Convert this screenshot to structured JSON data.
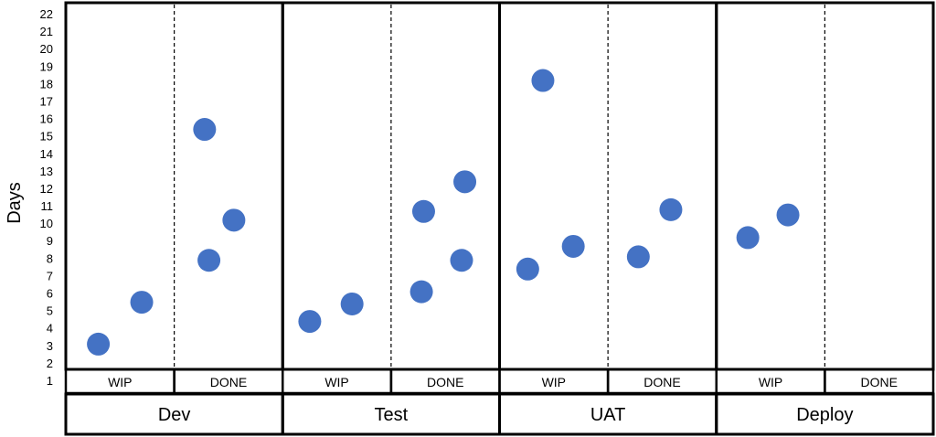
{
  "chart_data": {
    "type": "scatter",
    "title": "",
    "ylabel": "Days",
    "ylim": [
      1,
      22
    ],
    "yticks": [
      "1",
      "2",
      "3",
      "4",
      "5",
      "6",
      "7",
      "8",
      "9",
      "10",
      "11",
      "12",
      "13",
      "14",
      "15",
      "16",
      "17",
      "18",
      "19",
      "20",
      "21",
      "22"
    ],
    "point_color": "#4472C4",
    "stages": [
      {
        "name": "Dev",
        "columns": [
          {
            "label": "WIP",
            "points": [
              {
                "x": 0.3,
                "y": 3.1
              },
              {
                "x": 0.7,
                "y": 5.5
              }
            ]
          },
          {
            "label": "DONE",
            "points": [
              {
                "x": 0.28,
                "y": 15.4
              },
              {
                "x": 0.32,
                "y": 7.9
              },
              {
                "x": 0.55,
                "y": 10.2
              }
            ]
          }
        ]
      },
      {
        "name": "Test",
        "columns": [
          {
            "label": "WIP",
            "points": [
              {
                "x": 0.25,
                "y": 4.4
              },
              {
                "x": 0.64,
                "y": 5.4
              }
            ]
          },
          {
            "label": "DONE",
            "points": [
              {
                "x": 0.3,
                "y": 10.7
              },
              {
                "x": 0.28,
                "y": 6.1
              },
              {
                "x": 0.68,
                "y": 12.4
              },
              {
                "x": 0.65,
                "y": 7.9
              }
            ]
          }
        ]
      },
      {
        "name": "UAT",
        "columns": [
          {
            "label": "WIP",
            "points": [
              {
                "x": 0.4,
                "y": 18.2
              },
              {
                "x": 0.26,
                "y": 7.4
              },
              {
                "x": 0.68,
                "y": 8.7
              }
            ]
          },
          {
            "label": "DONE",
            "points": [
              {
                "x": 0.28,
                "y": 8.1
              },
              {
                "x": 0.58,
                "y": 10.8
              }
            ]
          }
        ]
      },
      {
        "name": "Deploy",
        "columns": [
          {
            "label": "WIP",
            "points": [
              {
                "x": 0.29,
                "y": 9.2
              },
              {
                "x": 0.66,
                "y": 10.5
              }
            ]
          },
          {
            "label": "DONE",
            "points": []
          }
        ]
      }
    ]
  }
}
